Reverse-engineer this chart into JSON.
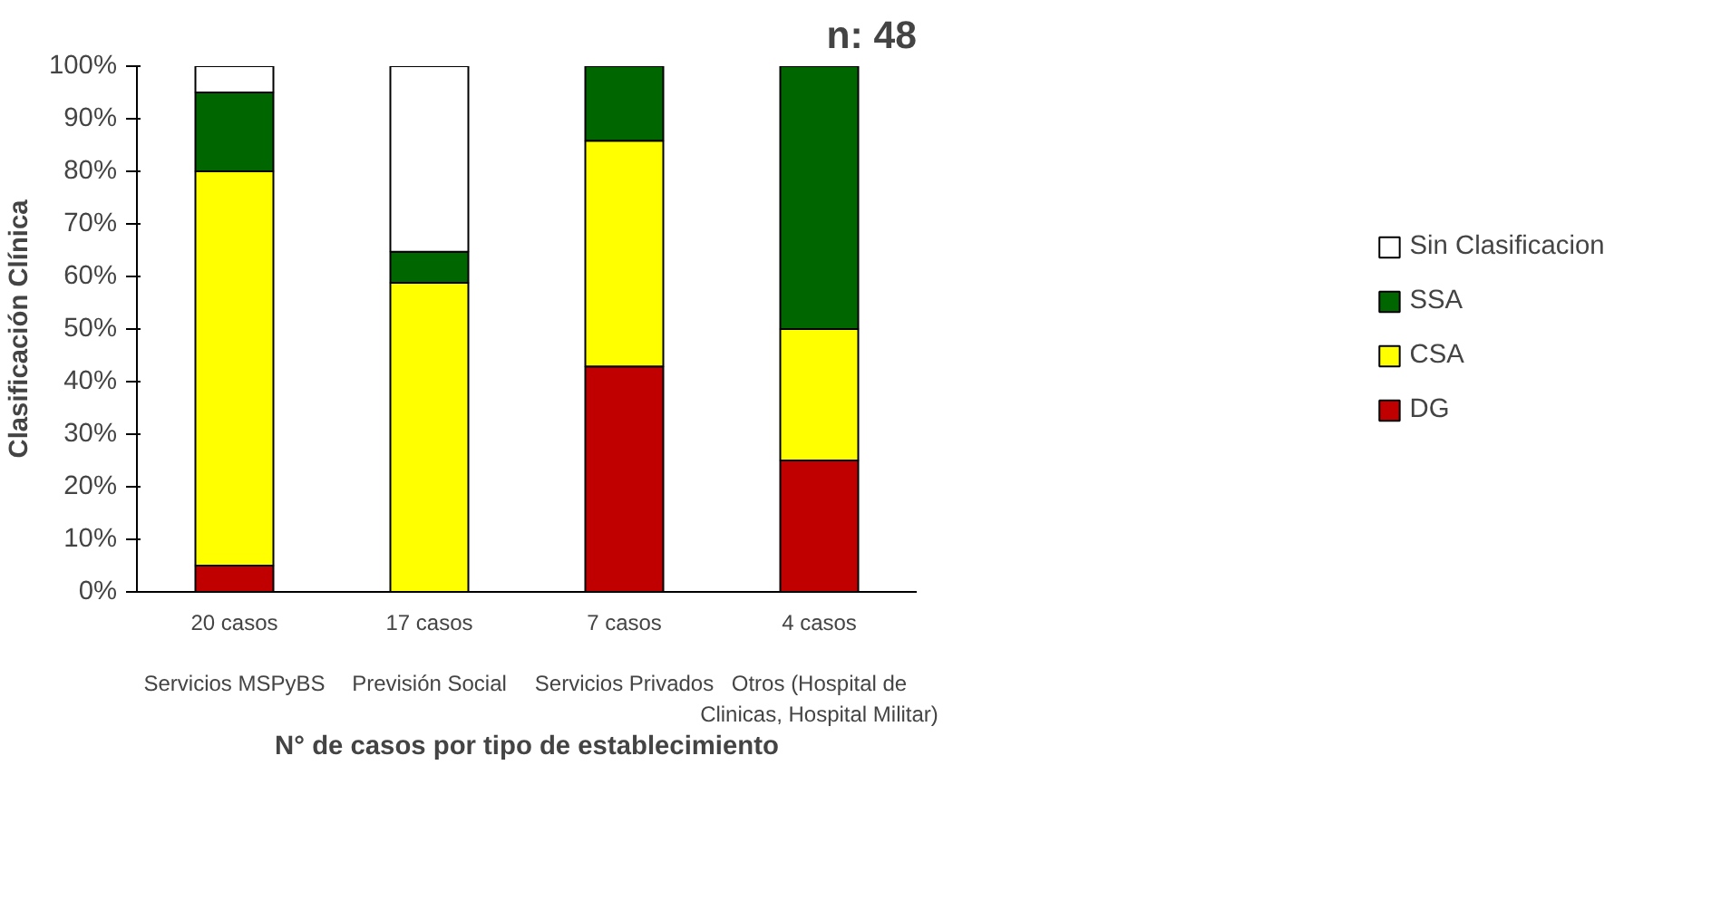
{
  "chart_data": {
    "type": "bar",
    "stacked": true,
    "categories": [
      "20 casos\n\nServicios MSPyBS",
      "17 casos\n\nPrevisión Social",
      "7 casos\n\nServicios Privados",
      "4 casos\n\nOtros (Hospital de\nClinicas, Hospital Militar)"
    ],
    "series": [
      {
        "name": "DG",
        "color": "#c00000",
        "values": [
          5,
          0,
          42.9,
          25
        ]
      },
      {
        "name": "CSA",
        "color": "#ffff00",
        "values": [
          75,
          58.8,
          42.9,
          25
        ]
      },
      {
        "name": "SSA",
        "color": "#006600",
        "values": [
          15,
          5.9,
          14.3,
          50
        ]
      },
      {
        "name": "Sin Clasificacion",
        "color": "#ffffff",
        "values": [
          5,
          35.3,
          0,
          0
        ]
      }
    ],
    "ylim": [
      0,
      100
    ],
    "yticks": [
      {
        "value": 0,
        "label": "0%"
      },
      {
        "value": 10,
        "label": "10%"
      },
      {
        "value": 20,
        "label": "20%"
      },
      {
        "value": 30,
        "label": "30%"
      },
      {
        "value": 40,
        "label": "40%"
      },
      {
        "value": 50,
        "label": "50%"
      },
      {
        "value": 60,
        "label": "60%"
      },
      {
        "value": 70,
        "label": "70%"
      },
      {
        "value": 80,
        "label": "80%"
      },
      {
        "value": 90,
        "label": "90%"
      },
      {
        "value": 100,
        "label": "100%"
      }
    ],
    "ylabel": "Clasificación Clínica",
    "xlabel": "N° de casos por tipo de establecimiento",
    "annotations": [
      "n: 48"
    ],
    "legend": "right"
  }
}
